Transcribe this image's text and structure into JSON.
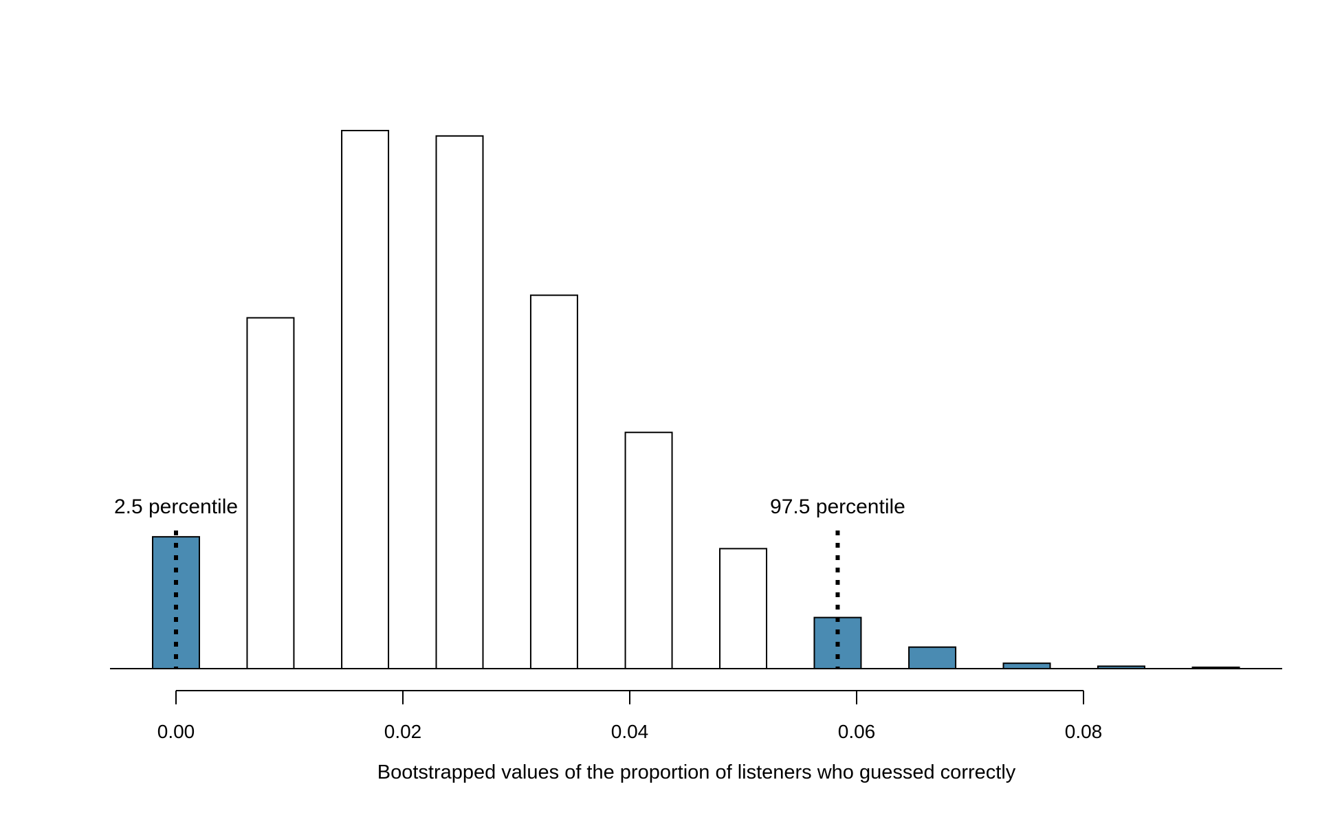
{
  "chart_data": {
    "type": "bar",
    "title": "",
    "xlabel": "Bootstrapped values of the proportion of listeners who guessed correctly",
    "ylabel": "",
    "bin_width": 0.00833,
    "bin_centers": [
      0.0,
      0.00833,
      0.01667,
      0.025,
      0.03333,
      0.04167,
      0.05,
      0.05833,
      0.06667,
      0.075,
      0.08333,
      0.09167
    ],
    "values": [
      24.5,
      65.2,
      100,
      99,
      69.4,
      43.9,
      22.3,
      9.5,
      4.0,
      1.0,
      0.45,
      0.25
    ],
    "highlighted": [
      true,
      false,
      false,
      false,
      false,
      false,
      false,
      true,
      true,
      true,
      true,
      true
    ],
    "ylim": [
      0,
      100
    ],
    "xticks": [
      0.0,
      0.02,
      0.04,
      0.06,
      0.08
    ],
    "xtick_labels": [
      "0.00",
      "0.02",
      "0.04",
      "0.06",
      "0.08"
    ],
    "grid": false,
    "colors": {
      "highlight": "#4a8bb2",
      "plain": "#ffffff",
      "stroke": "#000000"
    },
    "annotations": [
      {
        "x": 0.0,
        "label": "2.5 percentile"
      },
      {
        "x": 0.05833,
        "label": "97.5 percentile"
      }
    ]
  }
}
